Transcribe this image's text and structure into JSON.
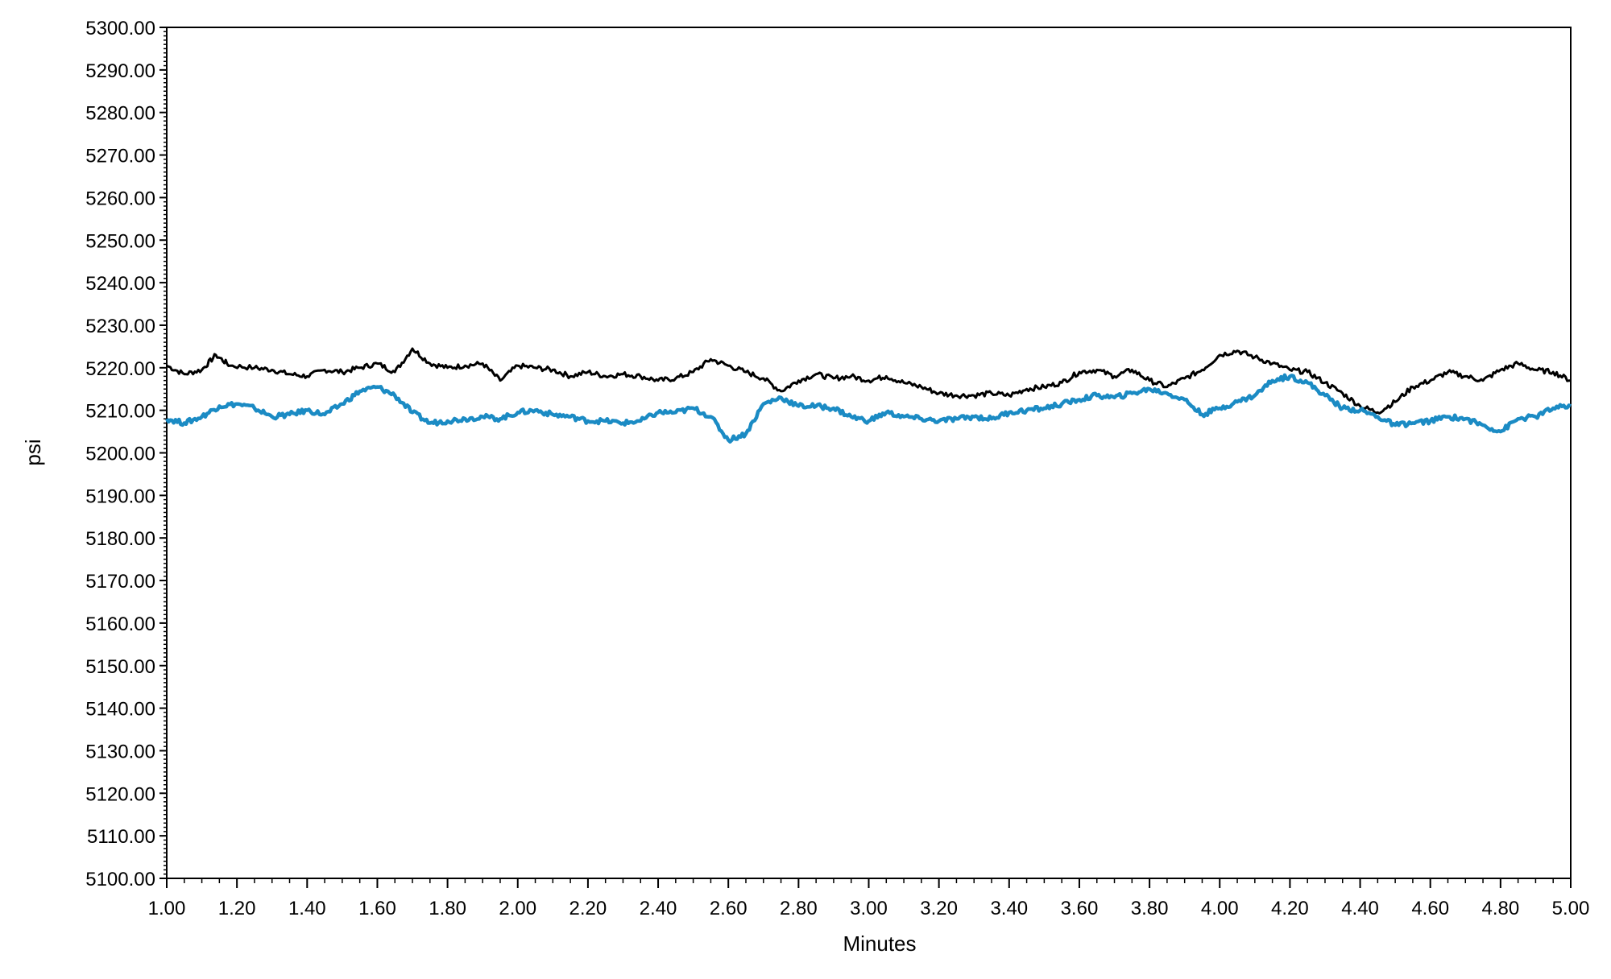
{
  "chart_data": {
    "type": "line",
    "xlabel": "Minutes",
    "ylabel": "psi",
    "xlim": [
      1.0,
      5.0
    ],
    "ylim": [
      5100.0,
      5300.0
    ],
    "x_ticks": [
      "1.00",
      "1.20",
      "1.40",
      "1.60",
      "1.80",
      "2.00",
      "2.20",
      "2.40",
      "2.60",
      "2.80",
      "3.00",
      "3.20",
      "3.40",
      "3.60",
      "3.80",
      "4.00",
      "4.20",
      "4.40",
      "4.60",
      "4.80",
      "5.00"
    ],
    "y_ticks": [
      "5100.00",
      "5110.00",
      "5120.00",
      "5130.00",
      "5140.00",
      "5150.00",
      "5160.00",
      "5170.00",
      "5180.00",
      "5190.00",
      "5200.00",
      "5210.00",
      "5220.00",
      "5230.00",
      "5240.00",
      "5250.00",
      "5260.00",
      "5270.00",
      "5280.00",
      "5290.00",
      "5300.00"
    ],
    "grid": false,
    "series": [
      {
        "color": "#000000",
        "points": [
          [
            1.0,
            5220.5
          ],
          [
            1.05,
            5218.5
          ],
          [
            1.1,
            5219.5
          ],
          [
            1.14,
            5223.0
          ],
          [
            1.18,
            5220.5
          ],
          [
            1.25,
            5220.0
          ],
          [
            1.3,
            5219.5
          ],
          [
            1.35,
            5218.5
          ],
          [
            1.4,
            5218.0
          ],
          [
            1.45,
            5219.5
          ],
          [
            1.5,
            5219.0
          ],
          [
            1.55,
            5220.0
          ],
          [
            1.6,
            5221.0
          ],
          [
            1.65,
            5219.0
          ],
          [
            1.7,
            5224.5
          ],
          [
            1.75,
            5221.0
          ],
          [
            1.8,
            5220.0
          ],
          [
            1.85,
            5220.5
          ],
          [
            1.9,
            5221.0
          ],
          [
            1.95,
            5217.0
          ],
          [
            2.0,
            5220.5
          ],
          [
            2.05,
            5220.0
          ],
          [
            2.1,
            5219.5
          ],
          [
            2.15,
            5218.0
          ],
          [
            2.2,
            5219.0
          ],
          [
            2.25,
            5218.0
          ],
          [
            2.3,
            5218.5
          ],
          [
            2.35,
            5218.0
          ],
          [
            2.4,
            5217.0
          ],
          [
            2.45,
            5217.5
          ],
          [
            2.5,
            5219.0
          ],
          [
            2.55,
            5222.0
          ],
          [
            2.6,
            5220.5
          ],
          [
            2.65,
            5219.0
          ],
          [
            2.7,
            5217.5
          ],
          [
            2.75,
            5214.5
          ],
          [
            2.8,
            5217.0
          ],
          [
            2.85,
            5218.5
          ],
          [
            2.9,
            5217.5
          ],
          [
            2.95,
            5218.0
          ],
          [
            3.0,
            5217.0
          ],
          [
            3.05,
            5218.0
          ],
          [
            3.1,
            5216.5
          ],
          [
            3.15,
            5215.5
          ],
          [
            3.2,
            5214.0
          ],
          [
            3.25,
            5213.5
          ],
          [
            3.3,
            5213.5
          ],
          [
            3.35,
            5214.0
          ],
          [
            3.4,
            5213.5
          ],
          [
            3.45,
            5215.0
          ],
          [
            3.5,
            5215.5
          ],
          [
            3.55,
            5216.5
          ],
          [
            3.6,
            5219.0
          ],
          [
            3.65,
            5219.5
          ],
          [
            3.7,
            5218.0
          ],
          [
            3.75,
            5219.5
          ],
          [
            3.8,
            5217.0
          ],
          [
            3.85,
            5215.5
          ],
          [
            3.9,
            5217.5
          ],
          [
            3.95,
            5219.5
          ],
          [
            4.0,
            5223.0
          ],
          [
            4.05,
            5224.0
          ],
          [
            4.1,
            5222.5
          ],
          [
            4.15,
            5221.0
          ],
          [
            4.2,
            5219.5
          ],
          [
            4.25,
            5219.0
          ],
          [
            4.3,
            5216.5
          ],
          [
            4.35,
            5214.0
          ],
          [
            4.4,
            5211.0
          ],
          [
            4.45,
            5209.5
          ],
          [
            4.5,
            5212.0
          ],
          [
            4.55,
            5215.5
          ],
          [
            4.6,
            5217.0
          ],
          [
            4.65,
            5219.0
          ],
          [
            4.7,
            5218.0
          ],
          [
            4.75,
            5217.0
          ],
          [
            4.8,
            5219.5
          ],
          [
            4.85,
            5221.0
          ],
          [
            4.9,
            5219.5
          ],
          [
            4.95,
            5219.0
          ],
          [
            5.0,
            5217.0
          ]
        ]
      },
      {
        "color": "#1b8bc4",
        "points": [
          [
            1.0,
            5208.0
          ],
          [
            1.05,
            5207.0
          ],
          [
            1.1,
            5208.5
          ],
          [
            1.15,
            5211.0
          ],
          [
            1.2,
            5211.5
          ],
          [
            1.25,
            5210.5
          ],
          [
            1.3,
            5208.5
          ],
          [
            1.35,
            5209.0
          ],
          [
            1.4,
            5210.0
          ],
          [
            1.45,
            5209.0
          ],
          [
            1.5,
            5211.5
          ],
          [
            1.55,
            5214.5
          ],
          [
            1.6,
            5215.5
          ],
          [
            1.65,
            5213.5
          ],
          [
            1.7,
            5209.5
          ],
          [
            1.75,
            5207.0
          ],
          [
            1.8,
            5207.5
          ],
          [
            1.85,
            5208.0
          ],
          [
            1.9,
            5208.5
          ],
          [
            1.95,
            5208.0
          ],
          [
            2.0,
            5209.5
          ],
          [
            2.05,
            5210.0
          ],
          [
            2.1,
            5209.0
          ],
          [
            2.15,
            5208.5
          ],
          [
            2.2,
            5207.5
          ],
          [
            2.25,
            5207.5
          ],
          [
            2.3,
            5207.0
          ],
          [
            2.35,
            5207.5
          ],
          [
            2.4,
            5209.5
          ],
          [
            2.45,
            5209.5
          ],
          [
            2.5,
            5210.5
          ],
          [
            2.55,
            5208.5
          ],
          [
            2.6,
            5203.0
          ],
          [
            2.65,
            5204.5
          ],
          [
            2.7,
            5211.5
          ],
          [
            2.75,
            5213.0
          ],
          [
            2.8,
            5211.0
          ],
          [
            2.85,
            5211.0
          ],
          [
            2.9,
            5210.5
          ],
          [
            2.95,
            5208.5
          ],
          [
            3.0,
            5207.5
          ],
          [
            3.05,
            5209.5
          ],
          [
            3.1,
            5208.5
          ],
          [
            3.15,
            5208.0
          ],
          [
            3.2,
            5207.5
          ],
          [
            3.25,
            5208.0
          ],
          [
            3.3,
            5208.5
          ],
          [
            3.35,
            5208.0
          ],
          [
            3.4,
            5209.5
          ],
          [
            3.45,
            5210.0
          ],
          [
            3.5,
            5210.5
          ],
          [
            3.55,
            5211.5
          ],
          [
            3.6,
            5212.5
          ],
          [
            3.65,
            5213.5
          ],
          [
            3.7,
            5213.0
          ],
          [
            3.75,
            5214.0
          ],
          [
            3.8,
            5215.0
          ],
          [
            3.85,
            5214.0
          ],
          [
            3.9,
            5212.5
          ],
          [
            3.95,
            5209.0
          ],
          [
            4.0,
            5210.5
          ],
          [
            4.05,
            5212.0
          ],
          [
            4.1,
            5213.5
          ],
          [
            4.15,
            5217.0
          ],
          [
            4.2,
            5218.0
          ],
          [
            4.25,
            5216.5
          ],
          [
            4.3,
            5213.5
          ],
          [
            4.35,
            5210.5
          ],
          [
            4.4,
            5210.0
          ],
          [
            4.45,
            5208.5
          ],
          [
            4.5,
            5206.5
          ],
          [
            4.55,
            5207.0
          ],
          [
            4.6,
            5207.5
          ],
          [
            4.65,
            5208.5
          ],
          [
            4.7,
            5208.0
          ],
          [
            4.75,
            5206.5
          ],
          [
            4.8,
            5205.0
          ],
          [
            4.85,
            5208.0
          ],
          [
            4.9,
            5208.5
          ],
          [
            4.95,
            5210.5
          ],
          [
            5.0,
            5211.0
          ]
        ]
      }
    ]
  }
}
